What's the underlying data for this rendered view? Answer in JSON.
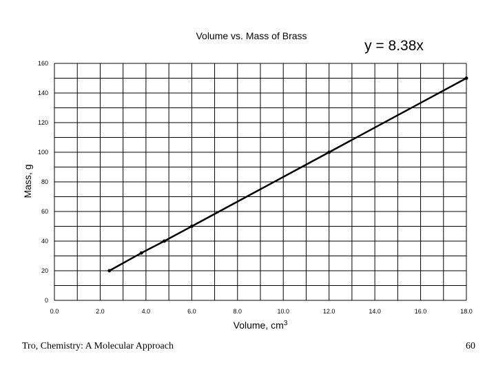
{
  "chart_data": {
    "type": "scatter",
    "title": "Volume vs. Mass of Brass",
    "equation": "y = 8.38x",
    "xlabel": "Volume, cm",
    "xlabel_sup": "3",
    "ylabel": "Mass, g",
    "xlim": [
      0,
      18
    ],
    "ylim": [
      0,
      160
    ],
    "x_ticks": [
      "0.0",
      "2.0",
      "4.0",
      "6.0",
      "8.0",
      "10.0",
      "12.0",
      "14.0",
      "16.0",
      "18.0"
    ],
    "y_ticks": [
      "0",
      "20",
      "40",
      "60",
      "80",
      "100",
      "120",
      "140",
      "160"
    ],
    "grid": true,
    "trendline": true,
    "series": [
      {
        "points": [
          {
            "x": 2.4,
            "y": 20
          },
          {
            "x": 3.8,
            "y": 32
          },
          {
            "x": 4.8,
            "y": 40
          },
          {
            "x": 6.0,
            "y": 50
          },
          {
            "x": 12.0,
            "y": 100
          },
          {
            "x": 18.0,
            "y": 150
          }
        ],
        "color": "#000000"
      }
    ]
  },
  "footer": {
    "source": "Tro, Chemistry: A Molecular Approach",
    "page_number": "60"
  }
}
